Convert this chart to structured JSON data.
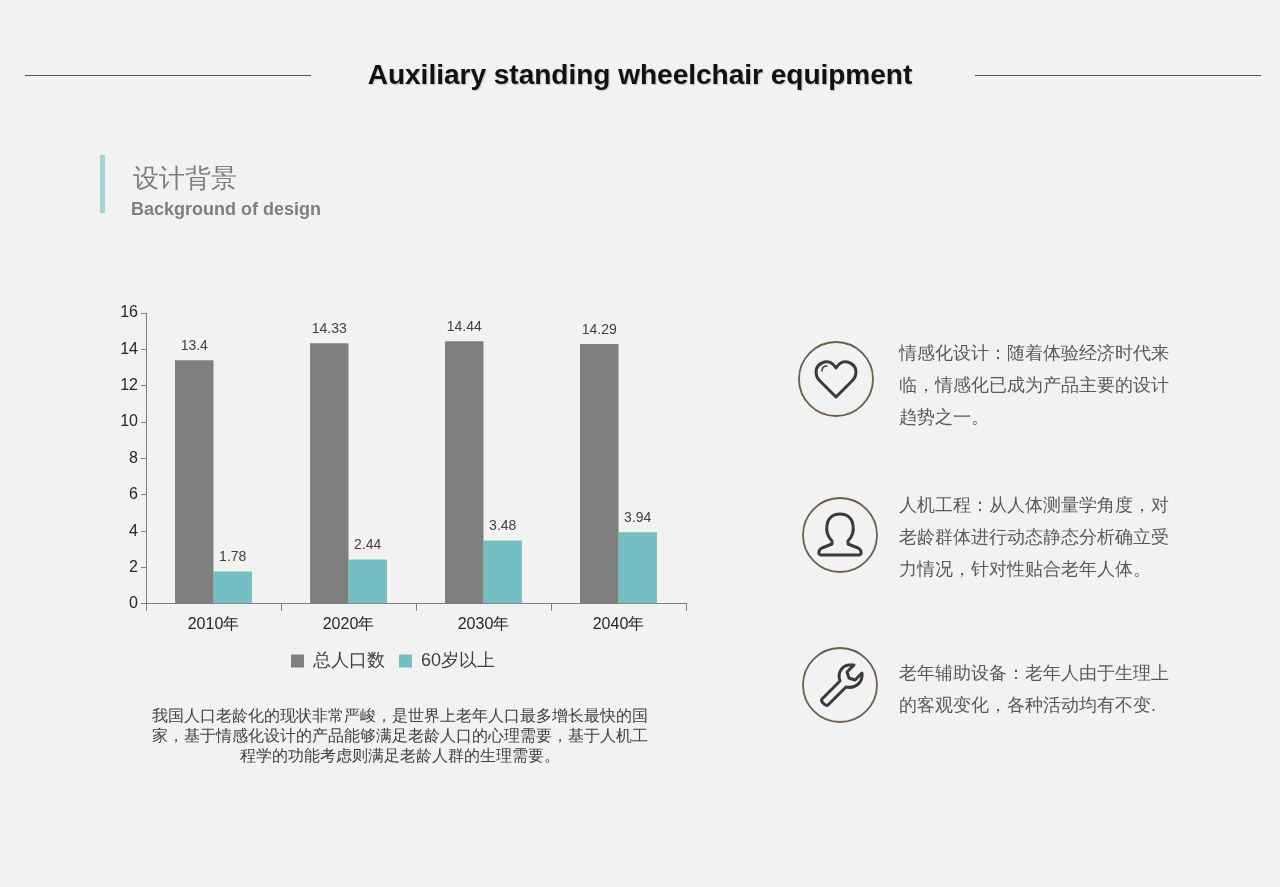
{
  "chart_data": {
    "type": "bar",
    "title": "Auxiliary standing wheelchair equipment",
    "subtitle": "设计背景",
    "annotations": [
      "Background of design",
      "我国人口老龄化的现状非常严峻，是世界上老年人口最多增长最快的国家，基于情感化设计的产品能够满足老龄人口的心理需要，基于人机工程学的功能考虑则满足老龄人群的生理需要。",
      "情感化设计：随着体验经济时代来临，情感化已成为产品主要的设计趋势之一。",
      "人机工程：从人体测量学角度，对老龄群体进行动态静态分析确立受力情况，针对性贴合老年人体。",
      "老年辅助设备：老年人由于生理上的客观变化，各种活动均有不变."
    ],
    "categories": [
      "2010年",
      "2020年",
      "2030年",
      "2040年"
    ],
    "series": [
      {
        "name": "总人口数",
        "color": "#7f7f7f",
        "values": [
          13.4,
          14.33,
          14.44,
          14.29
        ]
      },
      {
        "name": "60岁以上",
        "color": "#74bfc4",
        "values": [
          1.78,
          2.44,
          3.48,
          3.94
        ]
      }
    ],
    "ylim": [
      0,
      16
    ],
    "yticks": [
      0,
      2,
      4,
      6,
      8,
      10,
      12,
      14,
      16
    ],
    "data_labels": true,
    "legend": "bottom"
  }
}
